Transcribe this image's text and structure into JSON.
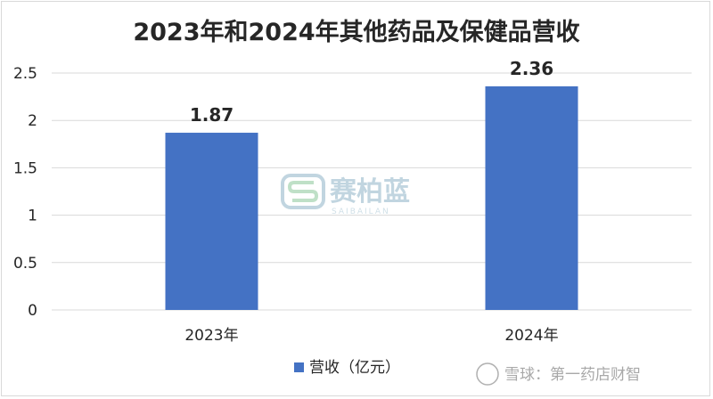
{
  "chart_data": {
    "type": "bar",
    "title": "2023年和2024年其他药品及保健品营收",
    "categories": [
      "2023年",
      "2024年"
    ],
    "series": [
      {
        "name": "营收（亿元）",
        "values": [
          1.87,
          2.36
        ],
        "color": "#4472c4"
      }
    ],
    "data_labels": [
      "1.87",
      "2.36"
    ],
    "y_ticks": [
      "0",
      "0.5",
      "1",
      "1.5",
      "2",
      "2.5"
    ],
    "ylim": [
      0,
      2.5
    ],
    "grid": true,
    "legend": "bottom"
  },
  "watermark": {
    "logo_text": "赛柏蓝",
    "logo_subtext": "SAIBAILAN",
    "source_text": "雪球：第一药店财智"
  }
}
